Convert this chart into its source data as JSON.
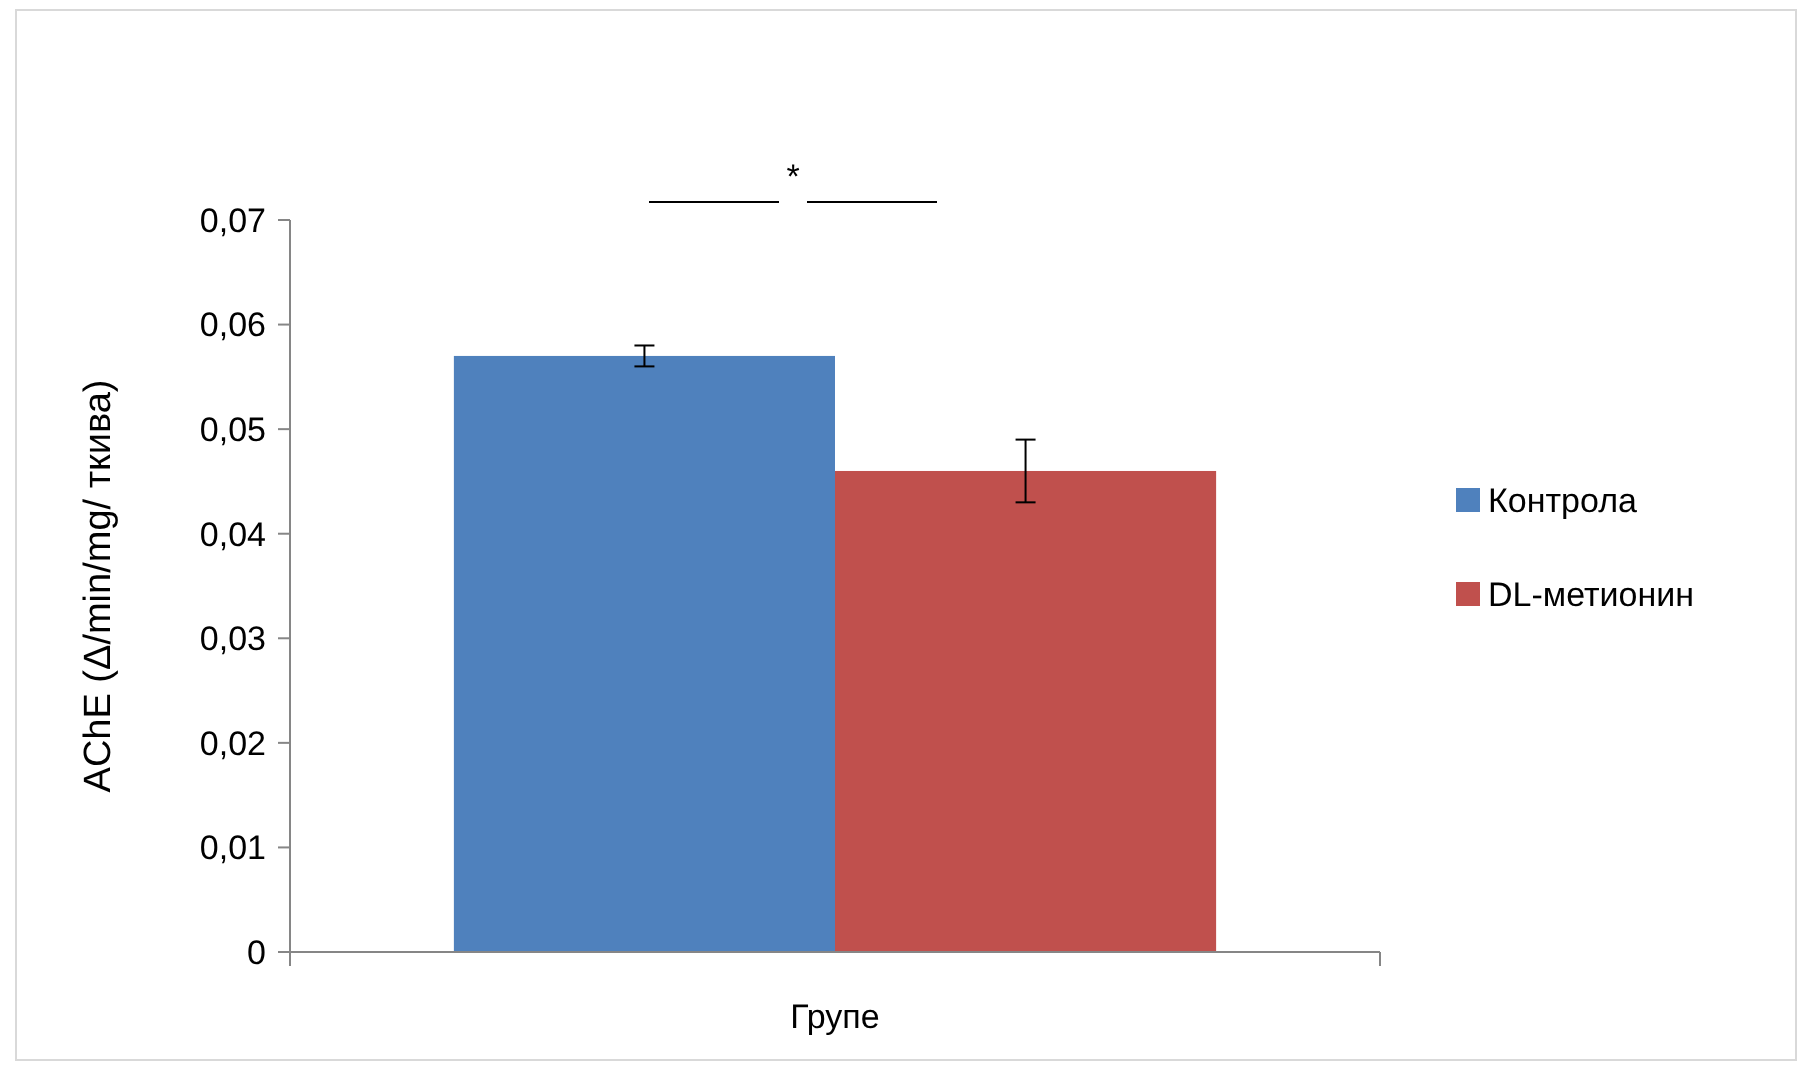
{
  "chart_data": {
    "type": "bar",
    "ylabel": "AChE (Δ/min/mg/ ткива)",
    "xlabel": "Групе",
    "categories": [
      null
    ],
    "series": [
      {
        "name": "Контрола",
        "color": "#4f81bd",
        "values": [
          0.057
        ],
        "errors": [
          0.001
        ]
      },
      {
        "name": "DL-метионин",
        "color": "#c0504d",
        "values": [
          0.046
        ],
        "errors": [
          0.003
        ]
      }
    ],
    "ylim": [
      0,
      0.07
    ],
    "yticks": [
      {
        "value": 0,
        "label": "0"
      },
      {
        "value": 0.01,
        "label": "0,01"
      },
      {
        "value": 0.02,
        "label": "0,02"
      },
      {
        "value": 0.03,
        "label": "0,03"
      },
      {
        "value": 0.04,
        "label": "0,04"
      },
      {
        "value": 0.05,
        "label": "0,05"
      },
      {
        "value": 0.06,
        "label": "0,06"
      },
      {
        "value": 0.07,
        "label": "0,07"
      }
    ],
    "grid": false,
    "legend": "right",
    "annotations": [
      "*"
    ]
  }
}
